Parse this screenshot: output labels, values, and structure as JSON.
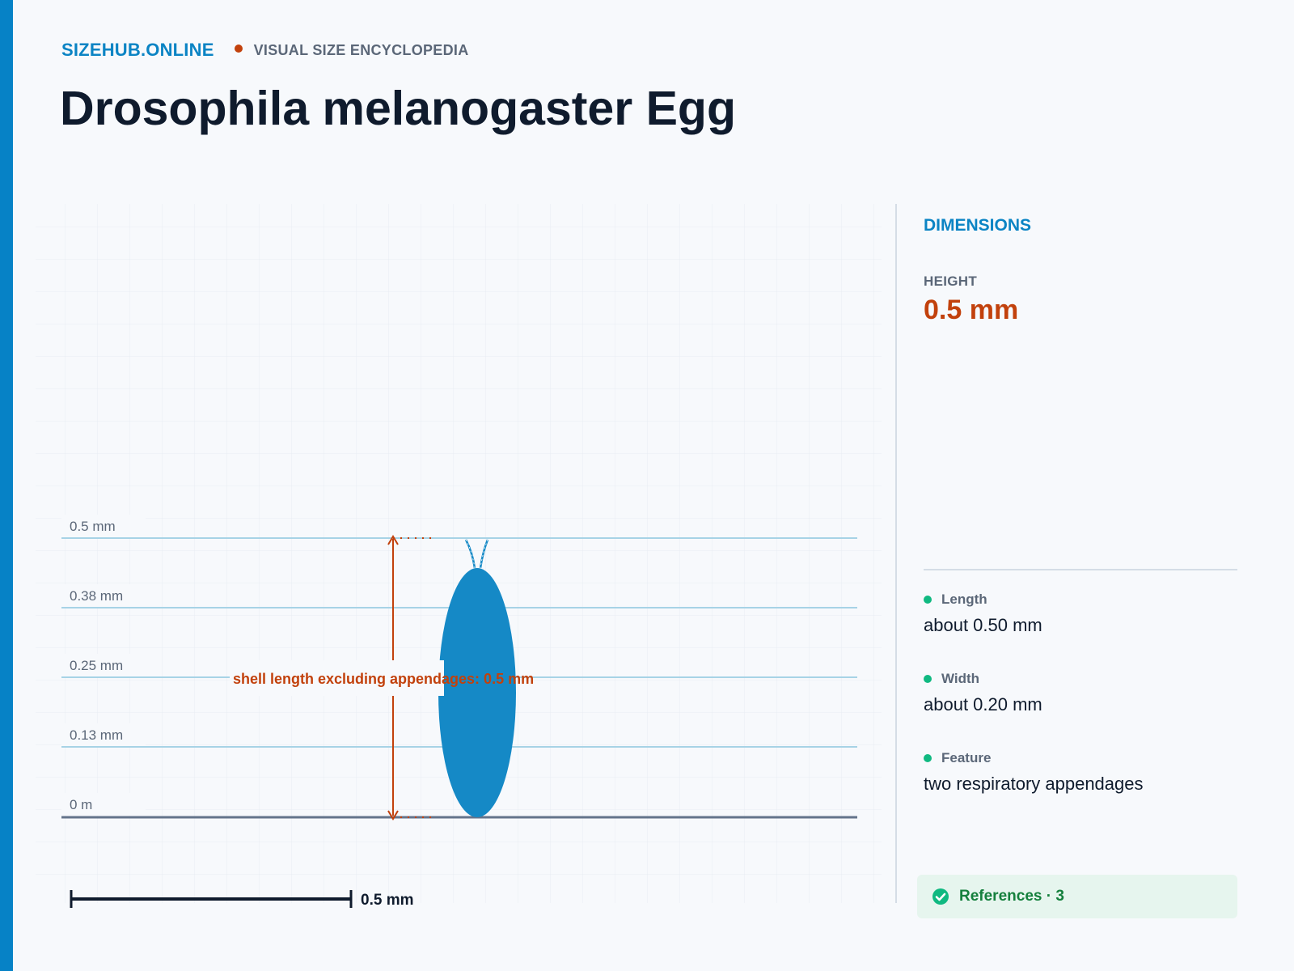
{
  "header": {
    "brand": "SIZEHUB.ONLINE",
    "tagline": "VISUAL SIZE ENCYCLOPEDIA",
    "title": "Drosophila melanogaster Egg"
  },
  "diagram": {
    "scale_ticks": [
      "0 m",
      "0.13 mm",
      "0.25 mm",
      "0.38 mm",
      "0.5 mm"
    ],
    "annotation": "shell length excluding appendages: 0.5 mm",
    "scale_bar_label": "0.5 mm",
    "object_color": "#1589c6",
    "annotation_color": "#c2410c"
  },
  "panel": {
    "heading": "DIMENSIONS",
    "metric_label": "HEIGHT",
    "metric_value": "0.5 mm",
    "facts": [
      {
        "name": "Length",
        "value": "about 0.50 mm"
      },
      {
        "name": "Width",
        "value": "about 0.20 mm"
      },
      {
        "name": "Feature",
        "value": "two respiratory appendages"
      }
    ],
    "references_label": "References · 3"
  }
}
